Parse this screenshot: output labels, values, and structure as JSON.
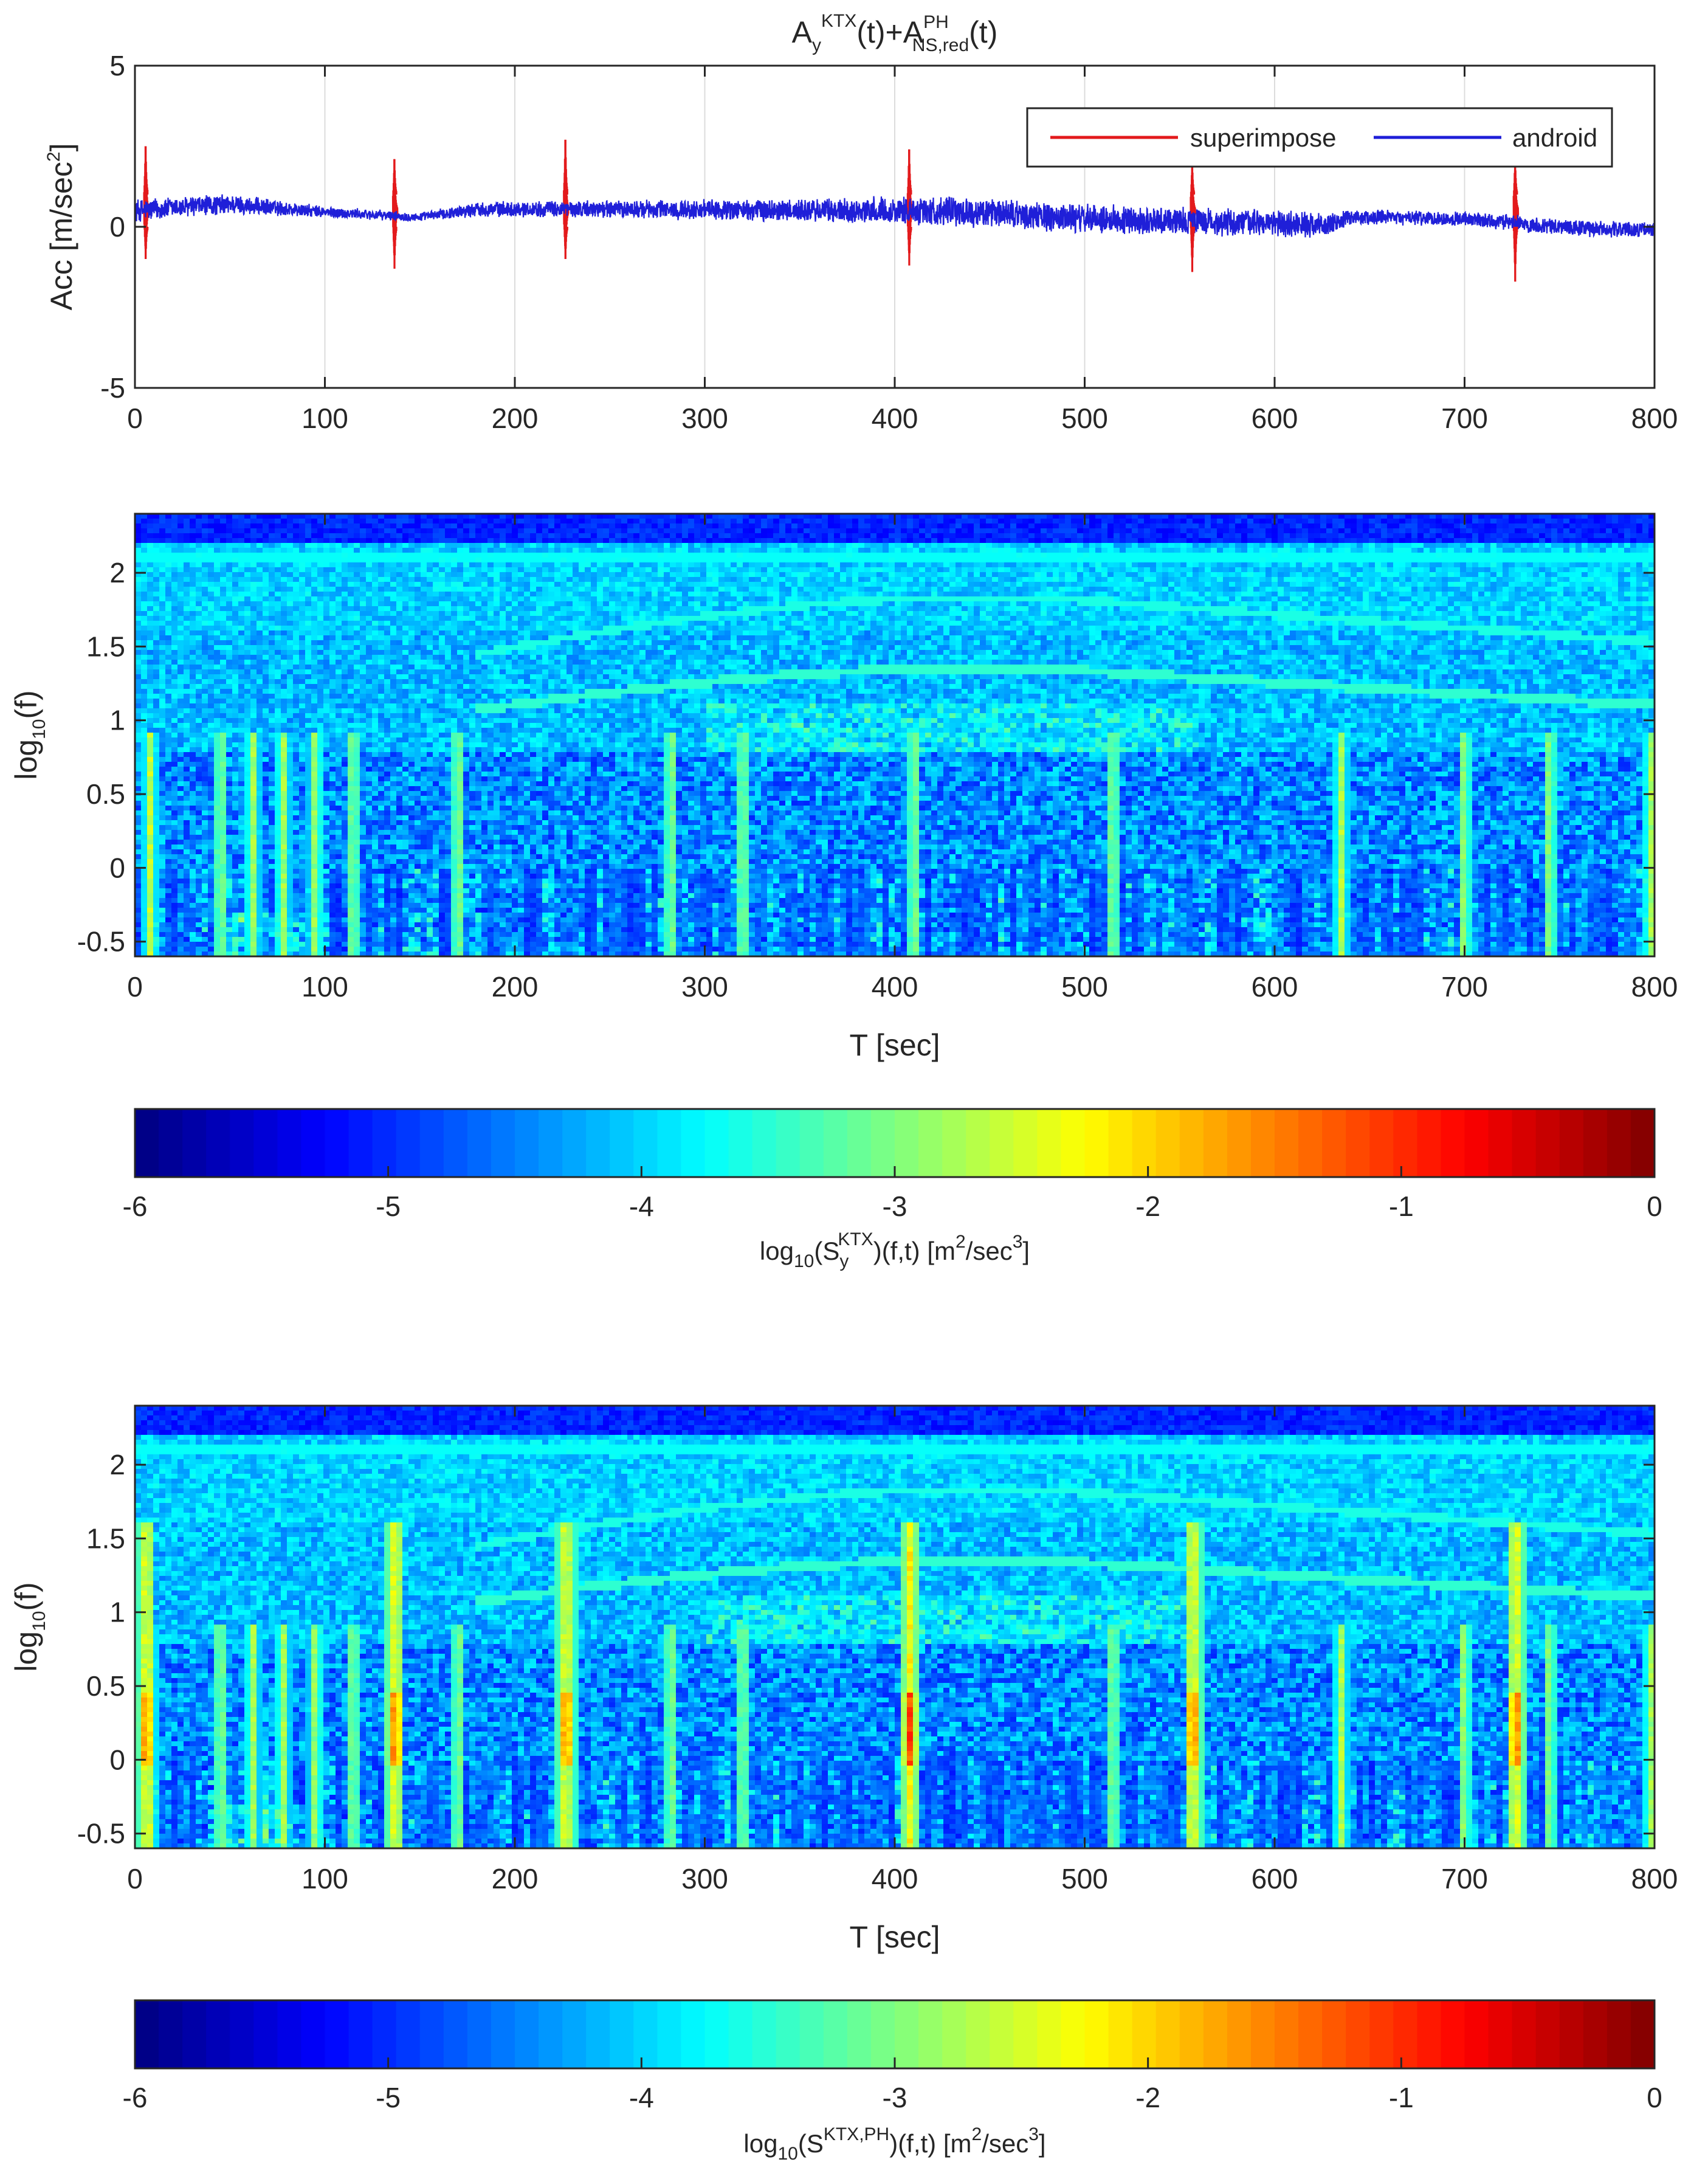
{
  "chart_data": [
    {
      "type": "line",
      "title": {
        "base": "A",
        "sub1": "y",
        "sup1": "KTX",
        "mid": "(t)+A",
        "sup2": "PH",
        "sub2": "NS,red",
        "end": "(t)"
      },
      "xlabel": "",
      "ylabel": {
        "main": "Acc [m/sec",
        "sup": "2",
        "end": "]"
      },
      "xlim": [
        0,
        800
      ],
      "ylim": [
        -5,
        5
      ],
      "xticks": [
        "0",
        "100",
        "200",
        "300",
        "400",
        "500",
        "600",
        "700",
        "800"
      ],
      "yticks": [
        "-5",
        "0",
        "5"
      ],
      "grid": "vertical",
      "legend_position": "top-right",
      "series": [
        {
          "name": "superimpose",
          "color": "#e31a1c",
          "spikes": [
            {
              "t": 6,
              "up": 2.5,
              "down": -1.0
            },
            {
              "t": 137,
              "up": 2.1,
              "down": -1.3
            },
            {
              "t": 227,
              "up": 2.7,
              "down": -1.0
            },
            {
              "t": 408,
              "up": 2.4,
              "down": -1.2
            },
            {
              "t": 557,
              "up": 2.0,
              "down": -1.4
            },
            {
              "t": 727,
              "up": 2.1,
              "down": -1.7
            }
          ]
        },
        {
          "name": "android",
          "color": "#1f1fd8",
          "envelope": [
            {
              "t": 0,
              "mean": 0.5,
              "amp": 0.4
            },
            {
              "t": 50,
              "mean": 0.7,
              "amp": 0.35
            },
            {
              "t": 100,
              "mean": 0.45,
              "amp": 0.2
            },
            {
              "t": 150,
              "mean": 0.3,
              "amp": 0.15
            },
            {
              "t": 180,
              "mean": 0.55,
              "amp": 0.25
            },
            {
              "t": 250,
              "mean": 0.55,
              "amp": 0.3
            },
            {
              "t": 350,
              "mean": 0.5,
              "amp": 0.4
            },
            {
              "t": 420,
              "mean": 0.5,
              "amp": 0.5
            },
            {
              "t": 500,
              "mean": 0.25,
              "amp": 0.5
            },
            {
              "t": 600,
              "mean": 0.1,
              "amp": 0.45
            },
            {
              "t": 630,
              "mean": 0.05,
              "amp": 0.4
            },
            {
              "t": 640,
              "mean": 0.3,
              "amp": 0.25
            },
            {
              "t": 700,
              "mean": 0.25,
              "amp": 0.25
            },
            {
              "t": 760,
              "mean": -0.05,
              "amp": 0.3
            },
            {
              "t": 800,
              "mean": -0.1,
              "amp": 0.25
            }
          ]
        }
      ]
    },
    {
      "type": "heatmap",
      "xlabel": "T [sec]",
      "ylabel": {
        "main": "log",
        "sub": "10",
        "end": "(f)"
      },
      "xlim": [
        0,
        800
      ],
      "ylim": [
        -0.6,
        2.4
      ],
      "xticks": [
        "0",
        "100",
        "200",
        "300",
        "400",
        "500",
        "600",
        "700",
        "800"
      ],
      "yticks": [
        "-0.5",
        "0",
        "0.5",
        "1",
        "1.5",
        "2"
      ],
      "vertical_streaks_t": [
        8,
        45,
        62,
        78,
        95,
        115,
        170,
        282,
        320,
        410,
        515,
        635,
        700,
        745,
        798
      ],
      "hot_spots": [],
      "colorbar": {
        "range": [
          -6,
          0
        ],
        "ticks": [
          "-6",
          "-5",
          "-4",
          "-3",
          "-2",
          "-1",
          "0"
        ],
        "label": {
          "base": "log",
          "sub1": "10",
          "mid": "(S",
          "sub2": "y",
          "sup": "KTX",
          "end": ")(f,t) [m",
          "sup2": "2",
          "end2": "/sec",
          "sup3": "3",
          "end3": "]"
        }
      }
    },
    {
      "type": "heatmap",
      "xlabel": "T [sec]",
      "ylabel": {
        "main": "log",
        "sub": "10",
        "end": "(f)"
      },
      "xlim": [
        0,
        800
      ],
      "ylim": [
        -0.6,
        2.4
      ],
      "xticks": [
        "0",
        "100",
        "200",
        "300",
        "400",
        "500",
        "600",
        "700",
        "800"
      ],
      "yticks": [
        "-0.5",
        "0",
        "0.5",
        "1",
        "1.5",
        "2"
      ],
      "vertical_streaks_t": [
        8,
        45,
        62,
        78,
        95,
        115,
        170,
        282,
        320,
        410,
        515,
        635,
        700,
        745,
        798
      ],
      "hot_spots": [
        6,
        137,
        227,
        408,
        557,
        727
      ],
      "colorbar": {
        "range": [
          -6,
          0
        ],
        "ticks": [
          "-6",
          "-5",
          "-4",
          "-3",
          "-2",
          "-1",
          "0"
        ],
        "label": {
          "base": "log",
          "sub1": "10",
          "mid": "(S",
          "sub2": "",
          "sup": "KTX,PH",
          "end": ")(f,t) [m",
          "sup2": "2",
          "end2": "/sec",
          "sup3": "3",
          "end3": "]"
        }
      }
    }
  ]
}
